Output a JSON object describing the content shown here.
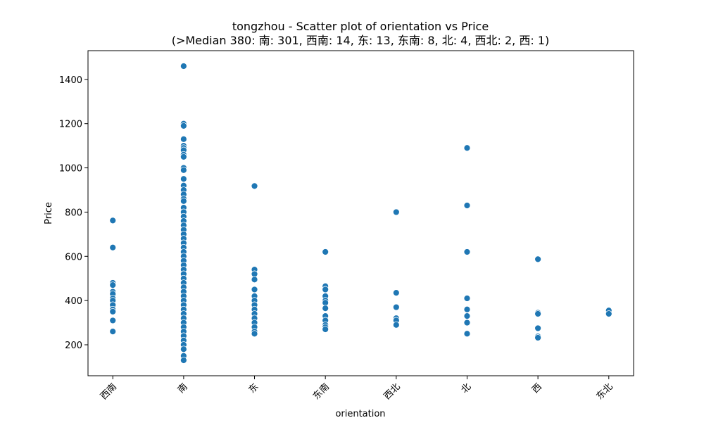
{
  "chart_data": {
    "type": "scatter",
    "title": "tongzhou - Scatter plot of orientation vs Price",
    "subtitle": "(>Median 380: 南: 301, 西南: 14, 东: 13, 东南: 8, 北: 4, 西北: 2, 西: 1)",
    "x_label": "orientation",
    "y_label": "Price",
    "categories": [
      "西南",
      "南",
      "东",
      "东南",
      "西北",
      "北",
      "西",
      "东北"
    ],
    "color": "#1f77b4",
    "x": [
      "西南",
      "西南",
      "西南",
      "西南",
      "西南",
      "西南",
      "西南",
      "西南",
      "西南",
      "西南",
      "西南",
      "西南",
      "西南",
      "南",
      "南",
      "南",
      "南",
      "南",
      "南",
      "南",
      "南",
      "南",
      "南",
      "南",
      "南",
      "南",
      "南",
      "南",
      "南",
      "南",
      "南",
      "南",
      "南",
      "南",
      "南",
      "南",
      "南",
      "南",
      "南",
      "南",
      "南",
      "南",
      "南",
      "南",
      "南",
      "南",
      "南",
      "南",
      "南",
      "南",
      "南",
      "南",
      "南",
      "南",
      "南",
      "南",
      "南",
      "南",
      "南",
      "南",
      "南",
      "南",
      "南",
      "南",
      "南",
      "东",
      "东",
      "东",
      "东",
      "东",
      "东",
      "东",
      "东",
      "东",
      "东",
      "东",
      "东",
      "东",
      "东",
      "东",
      "东南",
      "东南",
      "东南",
      "东南",
      "东南",
      "东南",
      "东南",
      "东南",
      "东南",
      "东南",
      "东南",
      "东南",
      "西北",
      "西北",
      "西北",
      "西北",
      "西北",
      "西北",
      "北",
      "北",
      "北",
      "北",
      "北",
      "北",
      "北",
      "北",
      "西",
      "西",
      "西",
      "西",
      "西",
      "西",
      "东北",
      "东北"
    ],
    "values": [
      762,
      640,
      480,
      470,
      440,
      430,
      410,
      400,
      380,
      360,
      350,
      310,
      260,
      1460,
      1200,
      1190,
      1130,
      1100,
      1090,
      1080,
      1060,
      1050,
      1000,
      990,
      950,
      920,
      900,
      880,
      860,
      850,
      820,
      800,
      780,
      760,
      740,
      720,
      700,
      680,
      660,
      640,
      620,
      600,
      580,
      560,
      540,
      520,
      500,
      480,
      460,
      440,
      420,
      400,
      380,
      360,
      340,
      320,
      300,
      280,
      260,
      240,
      220,
      200,
      180,
      150,
      130,
      918,
      540,
      520,
      495,
      450,
      420,
      400,
      380,
      360,
      340,
      320,
      300,
      280,
      260,
      250,
      620,
      465,
      450,
      420,
      400,
      390,
      365,
      330,
      310,
      290,
      280,
      270,
      800,
      435,
      370,
      320,
      310,
      290,
      1090,
      830,
      620,
      410,
      360,
      330,
      300,
      250,
      587,
      345,
      340,
      275,
      238,
      232,
      355,
      340
    ],
    "ylim": [
      60,
      1530
    ],
    "yticks": [
      200,
      400,
      600,
      800,
      1000,
      1200,
      1400
    ]
  }
}
